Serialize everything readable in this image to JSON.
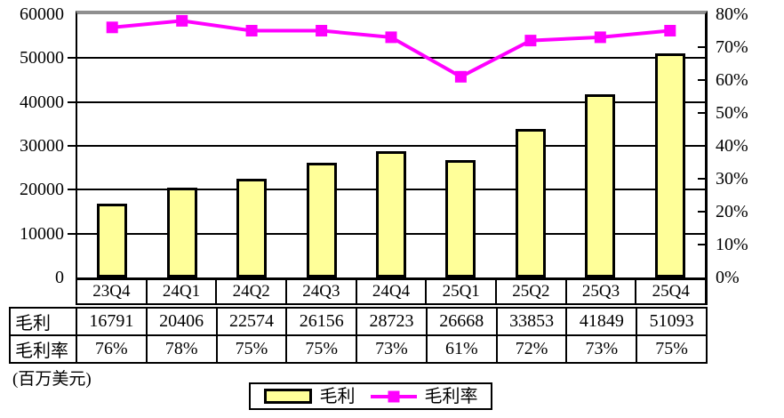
{
  "chart_data": {
    "type": "bar",
    "combo": "bar+line",
    "title": "",
    "categories": [
      "23Q4",
      "24Q1",
      "24Q2",
      "24Q3",
      "24Q4",
      "25Q1",
      "25Q2",
      "25Q3",
      "25Q4"
    ],
    "series": [
      {
        "name": "毛利",
        "type": "bar",
        "axis": "left",
        "color": "#FFFF99",
        "values": [
          16791,
          20406,
          22574,
          26156,
          28723,
          26668,
          33853,
          41849,
          51093
        ]
      },
      {
        "name": "毛利率",
        "type": "line",
        "axis": "right",
        "color": "#FF00FF",
        "values": [
          76,
          78,
          75,
          75,
          73,
          61,
          72,
          73,
          75
        ]
      }
    ],
    "left_axis": {
      "min": 0,
      "max": 60000,
      "step": 10000,
      "labels": [
        "0",
        "10000",
        "20000",
        "30000",
        "40000",
        "50000",
        "60000"
      ]
    },
    "right_axis": {
      "min": 0,
      "max": 80,
      "step": 10,
      "labels": [
        "0%",
        "10%",
        "20%",
        "30%",
        "40%",
        "50%",
        "60%",
        "70%",
        "80%"
      ]
    },
    "grid": true,
    "legend_position": "bottom",
    "unit_note": "(百万美元)"
  },
  "table": {
    "row_headers": [
      "毛利",
      "毛利率"
    ],
    "values": [
      "16791",
      "20406",
      "22574",
      "26156",
      "28723",
      "26668",
      "33853",
      "41849",
      "51093"
    ],
    "rates": [
      "76%",
      "78%",
      "75%",
      "75%",
      "73%",
      "61%",
      "72%",
      "73%",
      "75%"
    ]
  },
  "legend": {
    "bar_label": "毛利",
    "line_label": "毛利率"
  },
  "colors": {
    "bar_fill": "#FFFF99",
    "line": "#FF00FF",
    "grid": "#000000",
    "plot_top_border": "#8f8f8f"
  }
}
